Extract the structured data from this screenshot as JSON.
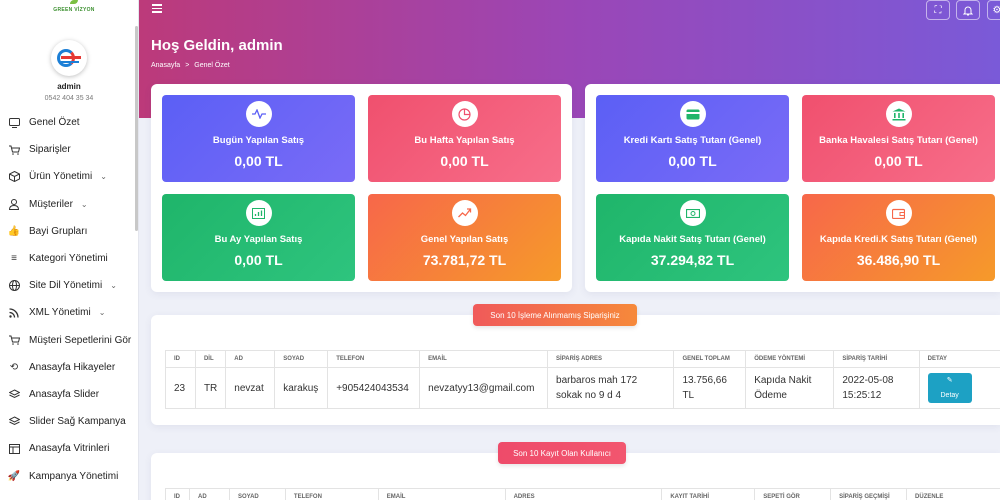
{
  "brand": {
    "logo_text": "GREEN VİZYON"
  },
  "user": {
    "name": "admin",
    "phone": "0542 404 35 34"
  },
  "sidebar": {
    "items": [
      {
        "label": "Genel Özet",
        "icon": "monitor-icon",
        "chevron": false
      },
      {
        "label": "Siparişler",
        "icon": "cart-icon",
        "chevron": false
      },
      {
        "label": "Ürün Yönetimi",
        "icon": "box-icon",
        "chevron": true
      },
      {
        "label": "Müşteriler",
        "icon": "user-icon",
        "chevron": true
      },
      {
        "label": "Bayi Grupları",
        "icon": "thumbs-up-icon",
        "chevron": false
      },
      {
        "label": "Kategori Yönetimi",
        "icon": "list-icon",
        "chevron": false
      },
      {
        "label": "Site Dil Yönetimi",
        "icon": "globe-icon",
        "chevron": true
      },
      {
        "label": "XML Yönetimi",
        "icon": "rss-icon",
        "chevron": true
      },
      {
        "label": "Müşteri Sepetlerini Gör",
        "icon": "cart-icon",
        "chevron": false
      },
      {
        "label": "Anasayfa Hikayeler",
        "icon": "history-icon",
        "chevron": false
      },
      {
        "label": "Anasayfa Slider",
        "icon": "layers-icon",
        "chevron": false
      },
      {
        "label": "Slider Sağ Kampanya",
        "icon": "layers-icon",
        "chevron": false
      },
      {
        "label": "Anasayfa Vitrinleri",
        "icon": "columns-icon",
        "chevron": false
      },
      {
        "label": "Kampanya Yönetimi",
        "icon": "rocket-icon",
        "chevron": false
      }
    ]
  },
  "header": {
    "title": "Hoş Geldin, admin",
    "breadcrumb": [
      "Anasayfa",
      "Genel Özet"
    ],
    "breadcrumb_sep": ">"
  },
  "stats_left": [
    {
      "label": "Bugün Yapılan Satış",
      "value": "0,00 TL",
      "icon": "pulse-icon",
      "theme": "blue"
    },
    {
      "label": "Bu Hafta Yapılan Satış",
      "value": "0,00 TL",
      "icon": "pie-chart-icon",
      "theme": "red"
    },
    {
      "label": "Bu Ay Yapılan Satış",
      "value": "0,00 TL",
      "icon": "bar-chart-icon",
      "theme": "green"
    },
    {
      "label": "Genel Yapılan Satış",
      "value": "73.781,72 TL",
      "icon": "trend-up-icon",
      "theme": "orange"
    }
  ],
  "stats_right": [
    {
      "label": "Kredi Kartı Satış Tutarı (Genel)",
      "value": "0,00 TL",
      "icon": "credit-card-icon",
      "theme": "blue"
    },
    {
      "label": "Banka Havalesi Satış Tutarı (Genel)",
      "value": "0,00 TL",
      "icon": "bank-icon",
      "theme": "red"
    },
    {
      "label": "Kapıda Nakit Satış Tutarı (Genel)",
      "value": "37.294,82 TL",
      "icon": "cash-icon",
      "theme": "green"
    },
    {
      "label": "Kapıda Kredi.K Satış Tutarı (Genel)",
      "value": "36.486,90 TL",
      "icon": "wallet-icon",
      "theme": "orange"
    }
  ],
  "orders": {
    "title": "Son 10 İşleme Alınmamış Siparişiniz",
    "columns": [
      "ID",
      "DİL",
      "AD",
      "SOYAD",
      "TELEFON",
      "EMAİL",
      "SİPARİŞ ADRES",
      "GENEL TOPLAM",
      "ÖDEME YÖNTEMİ",
      "SİPARİŞ TARİHİ",
      "DETAY"
    ],
    "rows": [
      {
        "id": "23",
        "lang": "TR",
        "name": "nevzat",
        "surname": "karakuş",
        "phone": "+905424043534",
        "email": "nevzatyy13@gmail.com",
        "address": "barbaros mah 172 sokak no 9 d 4",
        "total": "13.756,66 TL",
        "payment": "Kapıda Nakit Ödeme",
        "date": "2022-05-08 15:25:12",
        "detail_label": "Detay"
      }
    ]
  },
  "users": {
    "title": "Son 10 Kayıt Olan Kullanıcı",
    "columns": [
      "ID",
      "AD",
      "SOYAD",
      "TELEFON",
      "EMAİL",
      "ADRES",
      "KAYIT TARİHİ",
      "SEPETİ GÖR",
      "SİPARİŞ GEÇMİŞİ",
      "DÜZENLE"
    ]
  },
  "colors": {
    "accent_blue": "#5b5ff5",
    "accent_red": "#f0506e",
    "accent_green": "#1fb56a",
    "accent_orange": "#f7674a",
    "detail_button": "#1da1c4"
  }
}
